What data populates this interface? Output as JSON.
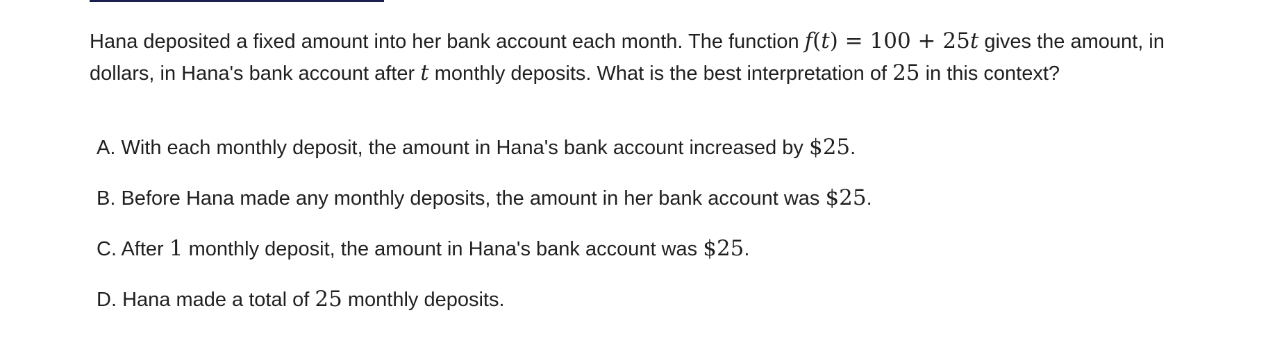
{
  "question": {
    "part1": "Hana deposited a fixed amount into her bank account each month. The function ",
    "func_f": "f",
    "func_open": "(",
    "func_t": "t",
    "func_close": ")",
    "func_rhs": " = 100 + 25",
    "func_t2": "t",
    "part2": " gives the amount, in dollars, in Hana's bank account after ",
    "var_t": "t",
    "part3": " monthly deposits. What is the best interpretation of ",
    "num_25": "25",
    "part4": " in this context?"
  },
  "choices": [
    {
      "letter": "A. ",
      "pre": "With each monthly deposit, the amount in Hana's bank account increased by ",
      "math": "$25",
      "post": "."
    },
    {
      "letter": "B. ",
      "pre": "Before Hana made any monthly deposits, the amount in her bank account was ",
      "math": "$25",
      "post": "."
    },
    {
      "letter": "C. ",
      "pre": "After ",
      "math": "1",
      "mid": " monthly deposit, the amount in Hana's bank account was ",
      "math2": "$25",
      "post": "."
    },
    {
      "letter": "D. ",
      "pre": "Hana made a total of ",
      "math": "25",
      "post": " monthly deposits."
    }
  ]
}
